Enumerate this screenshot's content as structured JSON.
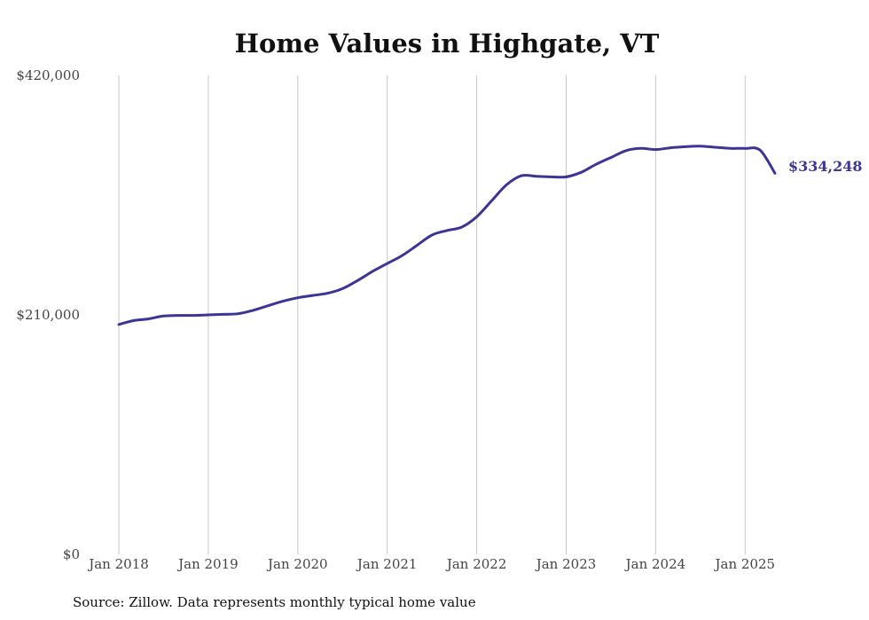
{
  "chart_data": {
    "type": "line",
    "title": "Home Values in Highgate, VT",
    "xlabel": "",
    "ylabel": "",
    "ylim": [
      0,
      420000
    ],
    "y_ticks": [
      {
        "value": 0,
        "label": "$0"
      },
      {
        "value": 210000,
        "label": "$210,000"
      },
      {
        "value": 420000,
        "label": "$420,000"
      }
    ],
    "x_ticks": [
      "Jan 2018",
      "Jan 2019",
      "Jan 2020",
      "Jan 2021",
      "Jan 2022",
      "Jan 2023",
      "Jan 2024",
      "Jan 2025"
    ],
    "grid": "vertical",
    "line_color": "#3b3595",
    "series": [
      {
        "x": [
          "2018-01",
          "2018-03",
          "2018-05",
          "2018-07",
          "2018-09",
          "2018-11",
          "2019-01",
          "2019-03",
          "2019-05",
          "2019-07",
          "2019-09",
          "2019-11",
          "2020-01",
          "2020-03",
          "2020-05",
          "2020-07",
          "2020-09",
          "2020-11",
          "2021-01",
          "2021-03",
          "2021-05",
          "2021-07",
          "2021-09",
          "2021-11",
          "2022-01",
          "2022-03",
          "2022-05",
          "2022-07",
          "2022-09",
          "2022-11",
          "2023-01",
          "2023-03",
          "2023-05",
          "2023-07",
          "2023-09",
          "2023-11",
          "2024-01",
          "2024-03",
          "2024-05",
          "2024-07",
          "2024-09",
          "2024-11",
          "2025-01",
          "2025-03",
          "2025-05"
        ],
        "values": [
          201500,
          205000,
          206500,
          209000,
          209500,
          209500,
          210000,
          210500,
          211000,
          214000,
          218000,
          222000,
          225000,
          227000,
          229000,
          233000,
          240000,
          248000,
          255000,
          262000,
          271000,
          280000,
          284000,
          287000,
          296000,
          310000,
          324000,
          332000,
          331500,
          331000,
          331000,
          335000,
          342000,
          348000,
          354000,
          356000,
          355000,
          356500,
          357500,
          358000,
          357000,
          356000,
          356000,
          354500,
          334248
        ]
      }
    ],
    "end_label": "$334,248",
    "source": "Source: Zillow. Data represents monthly typical home value"
  }
}
